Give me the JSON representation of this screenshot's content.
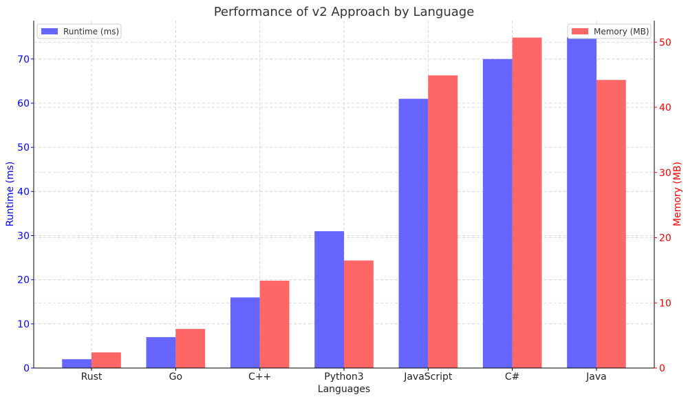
{
  "chart_data": {
    "type": "bar",
    "title": "Performance of v2 Approach by Language",
    "xlabel": "Languages",
    "ylabel": "Runtime (ms)",
    "y2label": "Memory (MB)",
    "categories": [
      "Rust",
      "Go",
      "C++",
      "Python3",
      "JavaScript",
      "C#",
      "Java"
    ],
    "series": [
      {
        "name": "Runtime (ms)",
        "axis": "left",
        "color": "#6666ff",
        "values": [
          2,
          7,
          16,
          31,
          61,
          70,
          75
        ]
      },
      {
        "name": "Memory (MB)",
        "axis": "right",
        "color": "#ff6666",
        "values": [
          2.4,
          6.0,
          13.4,
          16.5,
          44.9,
          50.7,
          44.2
        ]
      }
    ],
    "ylim": [
      0,
      78.7
    ],
    "y2lim": [
      0,
      53.3
    ],
    "yticks": [
      0,
      10,
      20,
      30,
      40,
      50,
      60,
      70
    ],
    "y2ticks": [
      0,
      10,
      20,
      30,
      40,
      50
    ],
    "left_axis_color": "#0000ff",
    "right_axis_color": "#ff0000",
    "grid": true,
    "legend_left": "top-left",
    "legend_right": "top-right"
  }
}
